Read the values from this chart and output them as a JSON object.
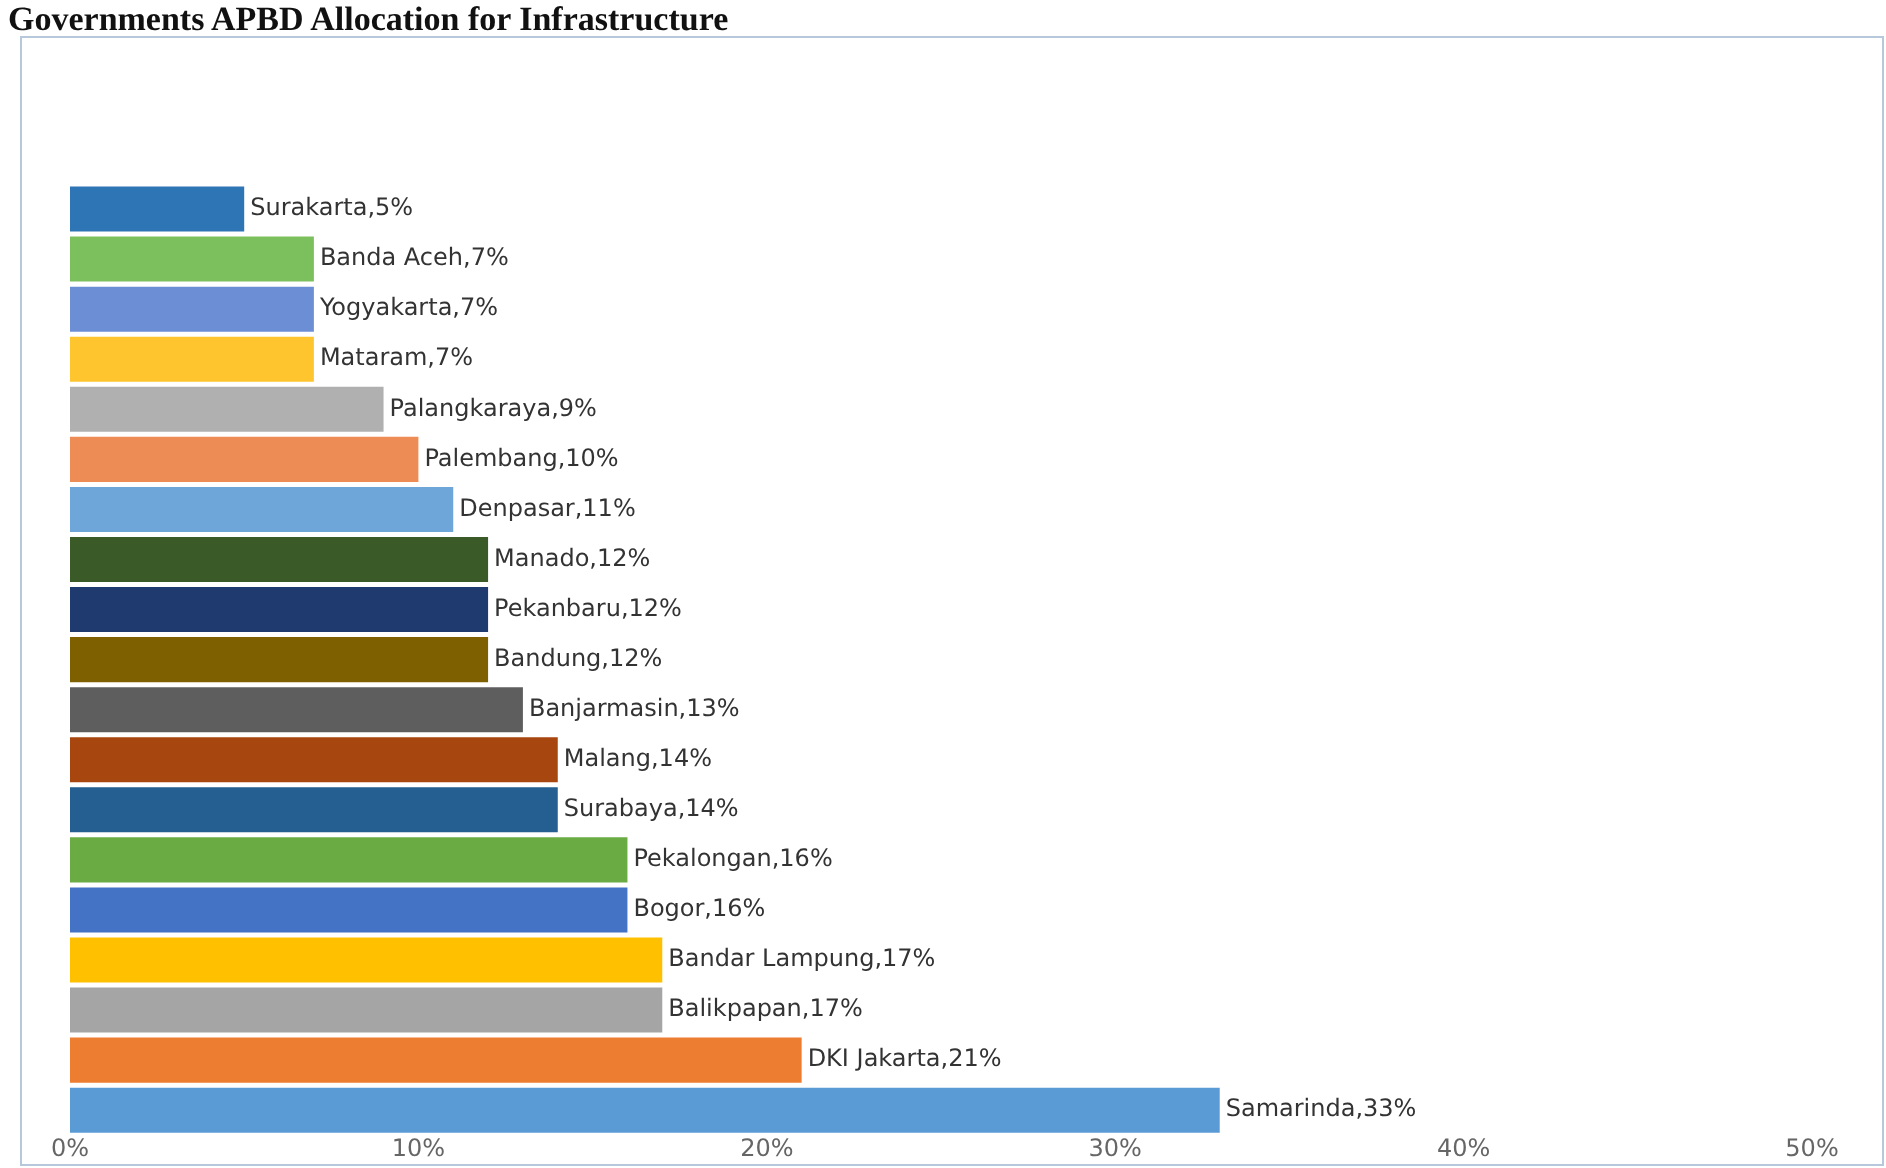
{
  "chart_data": {
    "type": "bar",
    "orientation": "horizontal",
    "title": "Governments APBD Allocation for Infrastructure",
    "categories": [
      null,
      null,
      null,
      null,
      null,
      null,
      null,
      null,
      null,
      null,
      null,
      null,
      null,
      null,
      null,
      null,
      null,
      null,
      null
    ],
    "values": [
      5,
      7,
      7,
      7,
      9,
      10,
      11,
      12,
      12,
      12,
      13,
      14,
      14,
      16,
      16,
      17,
      17,
      21,
      33
    ],
    "colors": [
      "#2e75b6",
      "#7cc05e",
      "#6c8ed4",
      "#ffc52e",
      "#b0b0b0",
      "#ee8c55",
      "#6fa6da",
      "#3a5a28",
      "#1f3a6e",
      "#7f6000",
      "#5e5e5e",
      "#a8460f",
      "#255e91",
      "#6aab44",
      "#4472c4",
      "#ffc000",
      "#a5a5a5",
      "#ed7d31",
      "#5b9bd5"
    ],
    "value_labels": [
      "Surakarta,5%",
      "Banda Aceh,7%",
      "Yogyakarta,7%",
      "Mataram,7%",
      "Palangkaraya,9%",
      "Palembang,10%",
      "Denpasar,11%",
      "Manado,12%",
      "Pekanbaru,12%",
      "Bandung,12%",
      "Banjarmasin,13%",
      "Malang,14%",
      "Surabaya,14%",
      "Pekalongan,16%",
      "Bogor,16%",
      "Bandar Lampung,17%",
      "Balikpapan,17%",
      "DKI Jakarta,21%",
      "Samarinda,33%"
    ],
    "xlim": [
      0,
      50
    ],
    "xticks": [
      {
        "value": 0,
        "label": "0%"
      },
      {
        "value": 10,
        "label": "10%"
      },
      {
        "value": 20,
        "label": "20%"
      },
      {
        "value": 30,
        "label": "30%"
      },
      {
        "value": 40,
        "label": "40%"
      },
      {
        "value": 50,
        "label": "50%"
      }
    ],
    "tick_labels": "x",
    "grid": false,
    "legend": false
  }
}
